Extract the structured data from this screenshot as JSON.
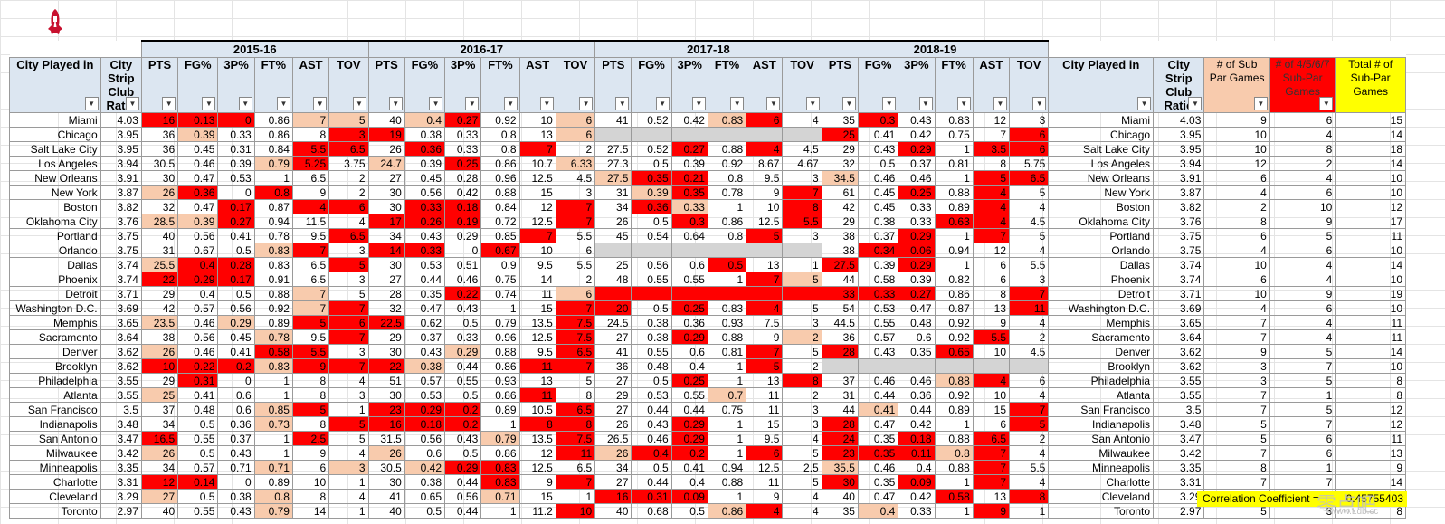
{
  "logo_name": "rockets-logo-icon",
  "seasons": [
    "2015-16",
    "2016-17",
    "2017-18",
    "2018-19"
  ],
  "headers": {
    "city": "City Played in",
    "ratio": "City Strip Club Ratio",
    "stats": [
      "PTS",
      "FG%",
      "3P%",
      "FT%",
      "AST",
      "TOV"
    ],
    "city2": "City Played in",
    "ratio2": "City Strip Club Ratio",
    "extra": [
      "# of Sub Par Games",
      "# of 4/5/6/7 Sub-Par Games",
      "Total # of Sub-Par Games"
    ]
  },
  "rows": [
    [
      "Miami",
      "4.03",
      [
        "16",
        "r"
      ],
      [
        "0.13",
        "r"
      ],
      [
        "0",
        "r"
      ],
      "0.86",
      [
        "7",
        "p"
      ],
      [
        "5",
        "p"
      ],
      "40",
      [
        "0.4",
        "p"
      ],
      [
        "0.27",
        "r"
      ],
      "0.92",
      "10",
      [
        "6",
        "p"
      ],
      "41",
      "0.52",
      "0.42",
      [
        "0.83",
        "p"
      ],
      [
        "6",
        "r"
      ],
      "4",
      "35",
      [
        "0.3",
        "r"
      ],
      "0.43",
      "0.83",
      "12",
      "3",
      "Miami",
      "4.03",
      "9",
      "6",
      "15"
    ],
    [
      "Chicago",
      "3.95",
      "36",
      [
        "0.39",
        "p"
      ],
      "0.33",
      "0.86",
      "8",
      [
        "3",
        "r"
      ],
      [
        "19",
        "r"
      ],
      "0.38",
      "0.33",
      "0.8",
      "13",
      [
        "6",
        "p"
      ],
      [
        "",
        "g"
      ],
      [
        "",
        "g"
      ],
      [
        "",
        "g"
      ],
      [
        "",
        "g"
      ],
      [
        "",
        "g"
      ],
      [
        "",
        "g"
      ],
      [
        "25",
        "r"
      ],
      "0.41",
      "0.42",
      "0.75",
      "7",
      [
        "6",
        "r"
      ],
      "Chicago",
      "3.95",
      "10",
      "4",
      "14"
    ],
    [
      "Salt Lake City",
      "3.95",
      "36",
      "0.45",
      "0.31",
      "0.84",
      [
        "5.5",
        "r"
      ],
      [
        "6.5",
        "r"
      ],
      "26",
      [
        "0.36",
        "r"
      ],
      "0.33",
      "0.8",
      [
        "7",
        "r"
      ],
      "2",
      "27.5",
      "0.52",
      [
        "0.27",
        "r"
      ],
      "0.88",
      [
        "4",
        "r"
      ],
      "4.5",
      "29",
      "0.43",
      [
        "0.29",
        "r"
      ],
      "1",
      [
        "3.5",
        "r"
      ],
      [
        "6",
        "r"
      ],
      "Salt Lake City",
      "3.95",
      "10",
      "8",
      "18"
    ],
    [
      "Los Angeles",
      "3.94",
      "30.5",
      "0.46",
      "0.39",
      [
        "0.79",
        "p"
      ],
      [
        "5.25",
        "r"
      ],
      "3.75",
      [
        "24.7",
        "p"
      ],
      "0.39",
      [
        "0.25",
        "r"
      ],
      "0.86",
      "10.7",
      [
        "6.33",
        "p"
      ],
      "27.3",
      "0.5",
      "0.39",
      "0.92",
      "8.67",
      "4.67",
      "32",
      "0.5",
      "0.37",
      "0.81",
      "8",
      "5.75",
      "Los Angeles",
      "3.94",
      "12",
      "2",
      "14"
    ],
    [
      "New Orleans",
      "3.91",
      "30",
      "0.47",
      "0.53",
      "1",
      "6.5",
      "2",
      "27",
      "0.45",
      "0.28",
      "0.96",
      "12.5",
      "4.5",
      [
        "27.5",
        "p"
      ],
      [
        "0.35",
        "r"
      ],
      [
        "0.21",
        "r"
      ],
      "0.8",
      "9.5",
      "3",
      [
        "34.5",
        "p"
      ],
      "0.46",
      "0.46",
      "1",
      [
        "5",
        "r"
      ],
      [
        "6.5",
        "r"
      ],
      "New Orleans",
      "3.91",
      "6",
      "4",
      "10"
    ],
    [
      "New York",
      "3.87",
      [
        "26",
        "p"
      ],
      [
        "0.36",
        "r"
      ],
      "0",
      [
        "0.8",
        "r"
      ],
      "9",
      "2",
      "30",
      "0.56",
      "0.42",
      "0.88",
      "15",
      "3",
      "31",
      [
        "0.39",
        "p"
      ],
      [
        "0.35",
        "r"
      ],
      "0.78",
      "9",
      [
        "7",
        "r"
      ],
      "61",
      "0.45",
      [
        "0.25",
        "r"
      ],
      "0.88",
      [
        "4",
        "r"
      ],
      "5",
      "New York",
      "3.87",
      "4",
      "6",
      "10"
    ],
    [
      "Boston",
      "3.82",
      "32",
      "0.47",
      [
        "0.17",
        "r"
      ],
      "0.87",
      [
        "4",
        "r"
      ],
      [
        "6",
        "r"
      ],
      "30",
      [
        "0.33",
        "r"
      ],
      [
        "0.18",
        "r"
      ],
      "0.84",
      "12",
      [
        "7",
        "r"
      ],
      "34",
      [
        "0.36",
        "r"
      ],
      [
        "0.33",
        "p"
      ],
      "1",
      "10",
      [
        "8",
        "r"
      ],
      "42",
      "0.45",
      "0.33",
      "0.89",
      [
        "4",
        "r"
      ],
      "4",
      "Boston",
      "3.82",
      "2",
      "10",
      "12"
    ],
    [
      "Oklahoma City",
      "3.76",
      [
        "28.5",
        "p"
      ],
      [
        "0.39",
        "p"
      ],
      [
        "0.27",
        "r"
      ],
      "0.94",
      "11.5",
      "4",
      [
        "17",
        "r"
      ],
      [
        "0.26",
        "r"
      ],
      [
        "0.19",
        "r"
      ],
      "0.72",
      "12.5",
      [
        "7",
        "r"
      ],
      "26",
      "0.5",
      [
        "0.3",
        "r"
      ],
      "0.86",
      "12.5",
      [
        "5.5",
        "r"
      ],
      "29",
      "0.38",
      "0.33",
      [
        "0.63",
        "r"
      ],
      [
        "4",
        "r"
      ],
      "4.5",
      "Oklahoma City",
      "3.76",
      "8",
      "9",
      "17"
    ],
    [
      "Portland",
      "3.75",
      "40",
      "0.56",
      "0.41",
      "0.78",
      "9.5",
      [
        "6.5",
        "r"
      ],
      "34",
      "0.43",
      "0.29",
      "0.85",
      [
        "7",
        "r"
      ],
      "5.5",
      "45",
      "0.54",
      "0.64",
      "0.8",
      [
        "5",
        "r"
      ],
      "3",
      "38",
      "0.37",
      [
        "0.29",
        "r"
      ],
      "1",
      [
        "7",
        "r"
      ],
      "5",
      "Portland",
      "3.75",
      "6",
      "5",
      "11"
    ],
    [
      "Orlando",
      "3.75",
      "31",
      "0.67",
      "0.5",
      [
        "0.83",
        "p"
      ],
      [
        "7",
        "r"
      ],
      "3",
      [
        "14",
        "r"
      ],
      [
        "0.33",
        "r"
      ],
      "0",
      [
        "0.67",
        "r"
      ],
      "10",
      "6",
      [
        "",
        "g"
      ],
      [
        "",
        "g"
      ],
      [
        "",
        "g"
      ],
      [
        "",
        "g"
      ],
      [
        "",
        "g"
      ],
      [
        "",
        "g"
      ],
      "38",
      [
        "0.34",
        "r"
      ],
      [
        "0.06",
        "r"
      ],
      "0.94",
      "12",
      "4",
      "Orlando",
      "3.75",
      "4",
      "6",
      "10"
    ],
    [
      "Dallas",
      "3.74",
      [
        "25.5",
        "p"
      ],
      [
        "0.4",
        "r"
      ],
      [
        "0.28",
        "r"
      ],
      "0.83",
      "6.5",
      [
        "5",
        "r"
      ],
      "30",
      "0.53",
      "0.51",
      "0.9",
      "9.5",
      "5.5",
      "25",
      "0.56",
      "0.6",
      [
        "0.5",
        "r"
      ],
      "13",
      "1",
      [
        "27.5",
        "r"
      ],
      "0.39",
      [
        "0.29",
        "r"
      ],
      "1",
      "6",
      "5.5",
      "Dallas",
      "3.74",
      "10",
      "4",
      "14"
    ],
    [
      "Phoenix",
      "3.74",
      [
        "22",
        "r"
      ],
      [
        "0.29",
        "r"
      ],
      [
        "0.17",
        "r"
      ],
      "0.91",
      "6.5",
      "3",
      "27",
      "0.44",
      "0.46",
      "0.75",
      "14",
      "2",
      "48",
      "0.55",
      "0.55",
      "1",
      [
        "7",
        "r"
      ],
      [
        "5",
        "p"
      ],
      "44",
      "0.58",
      "0.39",
      "0.82",
      "6",
      "3",
      "Phoenix",
      "3.74",
      "6",
      "4",
      "10"
    ],
    [
      "Detroit",
      "3.71",
      "29",
      "0.4",
      "0.5",
      "0.88",
      [
        "7",
        "p"
      ],
      "5",
      "28",
      "0.35",
      [
        "0.22",
        "r"
      ],
      "0.74",
      "11",
      [
        "6",
        "p"
      ],
      [
        "",
        "r"
      ],
      [
        "",
        "r"
      ],
      [
        "",
        "r"
      ],
      [
        "",
        "r"
      ],
      [
        "",
        "r"
      ],
      [
        "",
        "r"
      ],
      [
        "33",
        "r"
      ],
      [
        "0.33",
        "r"
      ],
      [
        "0.27",
        "r"
      ],
      "0.86",
      "8",
      [
        "7",
        "r"
      ],
      "Detroit",
      "3.71",
      "10",
      "9",
      "19"
    ],
    [
      "Washington D.C.",
      "3.69",
      "42",
      "0.57",
      "0.56",
      "0.92",
      [
        "7",
        "p"
      ],
      [
        "7",
        "r"
      ],
      "32",
      "0.47",
      "0.43",
      "1",
      "15",
      [
        "7",
        "r"
      ],
      [
        "20",
        "r"
      ],
      "0.5",
      [
        "0.25",
        "r"
      ],
      "0.83",
      [
        "4",
        "r"
      ],
      "5",
      "54",
      "0.53",
      "0.47",
      "0.87",
      "13",
      [
        "11",
        "r"
      ],
      "Washington D.C.",
      "3.69",
      "4",
      "6",
      "10"
    ],
    [
      "Memphis",
      "3.65",
      [
        "23.5",
        "p"
      ],
      "0.46",
      [
        "0.29",
        "p"
      ],
      "0.89",
      [
        "5",
        "r"
      ],
      [
        "6",
        "r"
      ],
      [
        "22.5",
        "r"
      ],
      "0.62",
      "0.5",
      "0.79",
      "13.5",
      [
        "7.5",
        "r"
      ],
      "24.5",
      "0.38",
      "0.36",
      "0.93",
      "7.5",
      "3",
      "44.5",
      "0.55",
      "0.48",
      "0.92",
      "9",
      "4",
      "Memphis",
      "3.65",
      "7",
      "4",
      "11"
    ],
    [
      "Sacramento",
      "3.64",
      "38",
      "0.56",
      "0.45",
      [
        "0.78",
        "p"
      ],
      "9.5",
      [
        "7",
        "r"
      ],
      "29",
      "0.37",
      "0.33",
      "0.96",
      "12.5",
      [
        "7.5",
        "r"
      ],
      "27",
      "0.38",
      [
        "0.29",
        "r"
      ],
      "0.88",
      "9",
      [
        "2",
        "p"
      ],
      "36",
      "0.57",
      "0.6",
      "0.92",
      [
        "5.5",
        "r"
      ],
      "2",
      "Sacramento",
      "3.64",
      "7",
      "4",
      "11"
    ],
    [
      "Denver",
      "3.62",
      [
        "26",
        "p"
      ],
      "0.46",
      "0.41",
      [
        "0.58",
        "r"
      ],
      [
        "5.5",
        "r"
      ],
      "3",
      "30",
      "0.43",
      [
        "0.29",
        "p"
      ],
      "0.88",
      "9.5",
      [
        "6.5",
        "r"
      ],
      "41",
      "0.55",
      "0.6",
      "0.81",
      [
        "7",
        "r"
      ],
      "5",
      [
        "28",
        "r"
      ],
      "0.43",
      "0.35",
      [
        "0.65",
        "r"
      ],
      "10",
      "4.5",
      "Denver",
      "3.62",
      "9",
      "5",
      "14"
    ],
    [
      "Brooklyn",
      "3.62",
      [
        "10",
        "r"
      ],
      [
        "0.22",
        "r"
      ],
      [
        "0.2",
        "r"
      ],
      [
        "0.83",
        "p"
      ],
      [
        "9",
        "r"
      ],
      [
        "7",
        "r"
      ],
      [
        "22",
        "r"
      ],
      [
        "0.38",
        "p"
      ],
      "0.44",
      "0.86",
      [
        "11",
        "r"
      ],
      [
        "7",
        "r"
      ],
      "36",
      "0.48",
      "0.4",
      "1",
      [
        "5",
        "r"
      ],
      "2",
      [
        "",
        "g"
      ],
      [
        "",
        "g"
      ],
      [
        "",
        "g"
      ],
      [
        "",
        "g"
      ],
      [
        "",
        "g"
      ],
      [
        "",
        "g"
      ],
      "Brooklyn",
      "3.62",
      "3",
      "7",
      "10"
    ],
    [
      "Philadelphia",
      "3.55",
      "29",
      [
        "0.31",
        "r"
      ],
      "0",
      "1",
      "8",
      "4",
      "51",
      "0.57",
      "0.55",
      "0.93",
      "13",
      "5",
      "27",
      "0.5",
      [
        "0.25",
        "r"
      ],
      "1",
      "13",
      [
        "8",
        "r"
      ],
      "37",
      "0.46",
      "0.46",
      [
        "0.88",
        "p"
      ],
      [
        "4",
        "r"
      ],
      "6",
      "Philadelphia",
      "3.55",
      "3",
      "5",
      "8"
    ],
    [
      "Atlanta",
      "3.55",
      [
        "25",
        "p"
      ],
      "0.41",
      "0.6",
      "1",
      "8",
      "3",
      "30",
      "0.53",
      "0.5",
      "0.86",
      [
        "11",
        "r"
      ],
      "8",
      "29",
      "0.53",
      "0.55",
      [
        "0.7",
        "p"
      ],
      "11",
      "2",
      "31",
      "0.44",
      "0.36",
      "0.92",
      "10",
      "4",
      "Atlanta",
      "3.55",
      "7",
      "1",
      "8"
    ],
    [
      "San Francisco",
      "3.5",
      "37",
      "0.48",
      "0.6",
      [
        "0.85",
        "p"
      ],
      [
        "5",
        "r"
      ],
      "1",
      [
        "23",
        "r"
      ],
      [
        "0.29",
        "r"
      ],
      [
        "0.2",
        "r"
      ],
      "0.89",
      "10.5",
      [
        "6.5",
        "r"
      ],
      "27",
      "0.44",
      "0.44",
      "0.75",
      "11",
      "3",
      "44",
      [
        "0.41",
        "p"
      ],
      "0.44",
      "0.89",
      "15",
      [
        "7",
        "r"
      ],
      "San Francisco",
      "3.5",
      "7",
      "5",
      "12"
    ],
    [
      "Indianapolis",
      "3.48",
      "34",
      "0.5",
      "0.36",
      [
        "0.73",
        "p"
      ],
      "8",
      [
        "5",
        "r"
      ],
      [
        "16",
        "r"
      ],
      [
        "0.18",
        "r"
      ],
      [
        "0.2",
        "r"
      ],
      "1",
      [
        "8",
        "r"
      ],
      [
        "8",
        "r"
      ],
      "26",
      "0.43",
      [
        "0.29",
        "r"
      ],
      "1",
      "15",
      "3",
      [
        "28",
        "r"
      ],
      "0.47",
      "0.42",
      "1",
      "6",
      [
        "5",
        "r"
      ],
      "Indianapolis",
      "3.48",
      "5",
      "7",
      "12"
    ],
    [
      "San Antonio",
      "3.47",
      [
        "16.5",
        "r"
      ],
      "0.55",
      "0.37",
      "1",
      [
        "2.5",
        "r"
      ],
      "5",
      "31.5",
      "0.56",
      "0.43",
      [
        "0.79",
        "p"
      ],
      "13.5",
      [
        "7.5",
        "r"
      ],
      "26.5",
      "0.46",
      [
        "0.29",
        "r"
      ],
      "1",
      "9.5",
      "4",
      [
        "24",
        "r"
      ],
      "0.35",
      [
        "0.18",
        "r"
      ],
      "0.88",
      [
        "6.5",
        "r"
      ],
      "2",
      "San Antonio",
      "3.47",
      "5",
      "6",
      "11"
    ],
    [
      "Milwaukee",
      "3.42",
      [
        "26",
        "p"
      ],
      "0.5",
      "0.43",
      "1",
      "9",
      "4",
      [
        "26",
        "p"
      ],
      "0.6",
      "0.5",
      "0.86",
      "12",
      [
        "11",
        "r"
      ],
      [
        "26",
        "p"
      ],
      [
        "0.4",
        "r"
      ],
      [
        "0.2",
        "r"
      ],
      "1",
      [
        "6",
        "r"
      ],
      "5",
      [
        "23",
        "r"
      ],
      [
        "0.35",
        "r"
      ],
      [
        "0.11",
        "r"
      ],
      [
        "0.8",
        "p"
      ],
      [
        "7",
        "r"
      ],
      "4",
      "Milwaukee",
      "3.42",
      "7",
      "6",
      "13"
    ],
    [
      "Minneapolis",
      "3.35",
      "34",
      "0.57",
      "0.71",
      [
        "0.71",
        "p"
      ],
      "6",
      [
        "3",
        "p"
      ],
      "30.5",
      [
        "0.42",
        "p"
      ],
      [
        "0.29",
        "r"
      ],
      [
        "0.83",
        "r"
      ],
      "12.5",
      "6.5",
      "34",
      "0.5",
      "0.41",
      "0.94",
      "12.5",
      "2.5",
      [
        "35.5",
        "p"
      ],
      "0.46",
      "0.4",
      "0.88",
      [
        "7",
        "r"
      ],
      "5.5",
      "Minneapolis",
      "3.35",
      "8",
      "1",
      "9"
    ],
    [
      "Charlotte",
      "3.31",
      [
        "12",
        "r"
      ],
      [
        "0.14",
        "r"
      ],
      "0",
      "0.89",
      "10",
      "1",
      "30",
      "0.38",
      "0.44",
      [
        "0.83",
        "r"
      ],
      "9",
      [
        "7",
        "r"
      ],
      "27",
      "0.44",
      "0.4",
      "0.88",
      "11",
      "5",
      [
        "30",
        "r"
      ],
      "0.35",
      [
        "0.09",
        "r"
      ],
      "1",
      [
        "7",
        "r"
      ],
      "4",
      "Charlotte",
      "3.31",
      "7",
      "7",
      "14"
    ],
    [
      "Cleveland",
      "3.29",
      [
        "27",
        "p"
      ],
      "0.5",
      "0.38",
      [
        "0.8",
        "p"
      ],
      "8",
      "4",
      "41",
      "0.65",
      "0.56",
      [
        "0.71",
        "p"
      ],
      "15",
      "1",
      [
        "16",
        "r"
      ],
      [
        "0.31",
        "r"
      ],
      [
        "0.09",
        "r"
      ],
      "1",
      "9",
      "4",
      "40",
      "0.47",
      "0.42",
      [
        "0.58",
        "r"
      ],
      "13",
      [
        "8",
        "r"
      ],
      "Cleveland",
      "3.29",
      "3",
      "5",
      "8"
    ],
    [
      "Toronto",
      "2.97",
      "40",
      "0.55",
      "0.43",
      [
        "0.79",
        "p"
      ],
      "14",
      "1",
      "40",
      "0.5",
      "0.44",
      "1",
      "11.2",
      [
        "10",
        "r"
      ],
      "40",
      "0.68",
      "0.5",
      [
        "0.86",
        "p"
      ],
      [
        "4",
        "r"
      ],
      "4",
      "35",
      [
        "0.4",
        "p"
      ],
      "0.33",
      "1",
      [
        "9",
        "r"
      ],
      "1",
      "Toronto",
      "2.97",
      "5",
      "3",
      "8"
    ]
  ],
  "correlation": {
    "label": "Correlation Coefficient =",
    "value": "0.45755403"
  },
  "watermark": {
    "main": "零点吧",
    "sub": "www.Ldb.cc"
  },
  "colors": {
    "bad": "#ff0000",
    "weak": "#f8cbad",
    "header": "#dce6f1",
    "highlight": "#ffff00"
  }
}
